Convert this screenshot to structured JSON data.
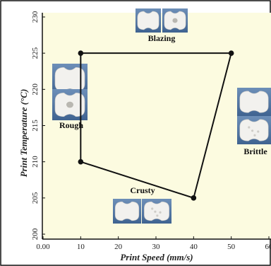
{
  "chart_data": {
    "type": "scatter",
    "xlabel": "Print Speed (mm/s)",
    "ylabel": "Print Temperature (°C)",
    "xlim": [
      0,
      60
    ],
    "ylim": [
      200,
      230
    ],
    "x_ticks": [
      "0.00",
      "10",
      "20",
      "30",
      "40",
      "50",
      "60"
    ],
    "y_ticks": [
      "200",
      "205",
      "210",
      "215",
      "220",
      "225",
      "230"
    ],
    "grid": false,
    "legend": "none",
    "series": [
      {
        "points": [
          {
            "x": 10,
            "y": 225
          },
          {
            "x": 50,
            "y": 225
          },
          {
            "x": 40,
            "y": 205
          },
          {
            "x": 10,
            "y": 210
          }
        ],
        "closed": true,
        "color": "#111111"
      }
    ],
    "annotations": [
      {
        "text": "Blazing",
        "thumbnails": 2
      },
      {
        "text": "Rough",
        "thumbnails": 2
      },
      {
        "text": "Brittle",
        "thumbnails": 2
      },
      {
        "text": "Crusty",
        "thumbnails": 2
      }
    ]
  }
}
